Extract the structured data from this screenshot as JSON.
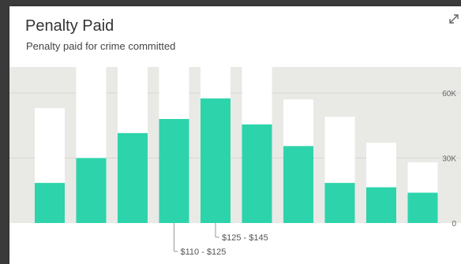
{
  "card": {
    "title": "Penalty Paid",
    "subtitle": "Penalty paid for crime committed",
    "expand_icon": "expand-arrows-icon"
  },
  "colors": {
    "accent": "#2dd4ab",
    "plot_bg": "#e9e9e6",
    "track": "#ffffff",
    "tick_text": "#666666"
  },
  "chart_data": {
    "type": "bar",
    "ylim": [
      0,
      72000
    ],
    "yticks": [
      0,
      30000,
      60000
    ],
    "ytick_labels": [
      "0",
      "30K",
      "60K"
    ],
    "totals": [
      53000,
      72000,
      72000,
      72000,
      72000,
      72000,
      57000,
      49000,
      37000,
      28000
    ],
    "values": [
      18500,
      30000,
      41500,
      48000,
      57500,
      45500,
      35500,
      18500,
      16500,
      14000
    ],
    "annotations": [
      {
        "text": "$110 - $125",
        "bar_index": 3
      },
      {
        "text": "$125 - $145",
        "bar_index": 4
      }
    ]
  }
}
